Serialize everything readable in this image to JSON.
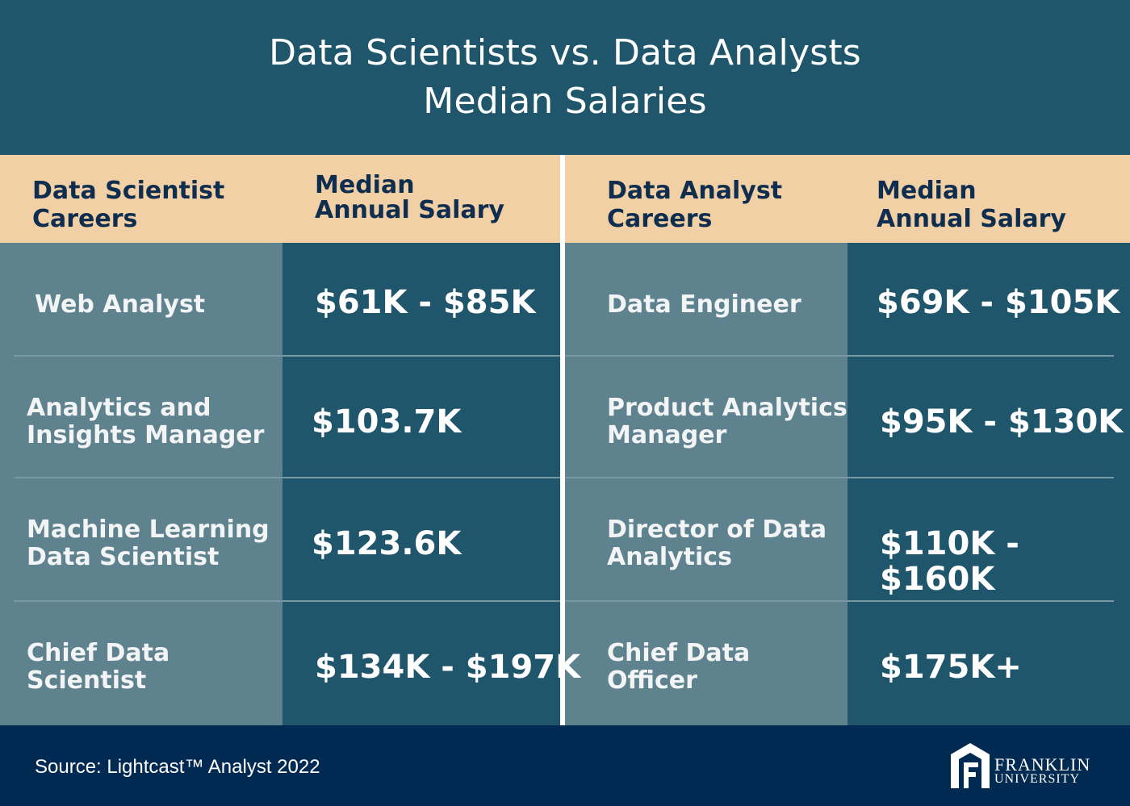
{
  "title": {
    "line1": "Data Scientists vs. Data Analysts",
    "line2": "Median Salaries"
  },
  "left_table": {
    "career_header": [
      "Data Scientist",
      "Careers"
    ],
    "salary_header": [
      "Median",
      "Annual Salary"
    ],
    "rows": [
      {
        "career": [
          "Web Analyst"
        ],
        "salary": "$61K - $85K"
      },
      {
        "career": [
          "Analytics and",
          "Insights Manager"
        ],
        "salary": "$103.7K"
      },
      {
        "career": [
          "Machine Learning",
          "Data Scientist"
        ],
        "salary": "$123.6K"
      },
      {
        "career": [
          "Chief Data",
          "Scientist"
        ],
        "salary": "$134K - $197K"
      }
    ]
  },
  "right_table": {
    "career_header": [
      "Data Analyst",
      "Careers"
    ],
    "salary_header": [
      "Median",
      "Annual Salary"
    ],
    "rows": [
      {
        "career": [
          "Data Engineer"
        ],
        "salary": "$69K - $105K"
      },
      {
        "career": [
          "Product Analytics",
          "Manager"
        ],
        "salary": "$95K - $130K"
      },
      {
        "career": [
          "Director of Data",
          "Analytics"
        ],
        "salary": "$110K - $160K"
      },
      {
        "career": [
          "Chief Data",
          "Officer"
        ],
        "salary": "$175K+"
      }
    ]
  },
  "footer": {
    "source": "Source:  Lightcast™ Analyst 2022",
    "logo_name": "FRANKLIN",
    "logo_sub": "UNIVERSITY",
    "logo_icon": "franklin-university-logo-icon"
  },
  "colors": {
    "title_bg": "#1f566b",
    "header_bg": "#f2d0a6",
    "header_text": "#0f2d4e",
    "career_bg": "#5e828e",
    "salary_bg": "#1f566b",
    "footer_bg": "#002a52"
  }
}
